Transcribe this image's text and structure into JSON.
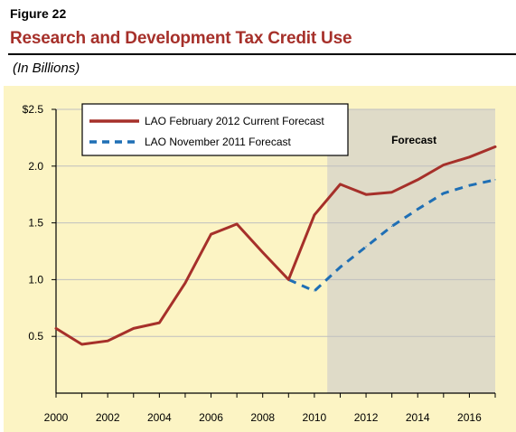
{
  "figure_label": "Figure 22",
  "colors": {
    "title": "#a6302a",
    "panel_bg": "#fcf4c4",
    "forecast_shade": "#dfdbc8",
    "series_current": "#a6302a",
    "series_previous": "#1f6fb5",
    "grid": "#bfbfbf"
  },
  "chart_data": {
    "type": "line",
    "title": "Research and Development Tax Credit Use",
    "subtitle": "(In Billions)",
    "xlabel": "",
    "ylabel": "",
    "xlim": [
      2000,
      2017
    ],
    "ylim": [
      0,
      2.5
    ],
    "x_ticks": [
      2000,
      2002,
      2004,
      2006,
      2008,
      2010,
      2012,
      2014,
      2016
    ],
    "x_tick_labels": [
      "2000",
      "2002",
      "2004",
      "2006",
      "2008",
      "2010",
      "2012",
      "2014",
      "2016"
    ],
    "y_ticks": [
      0.5,
      1.0,
      1.5,
      2.0,
      2.5
    ],
    "y_tick_labels": [
      "0.5",
      "1.0",
      "1.5",
      "2.0",
      "$2.5"
    ],
    "grid": "horizontal",
    "legend_position": "top-left",
    "forecast_region": {
      "start": 2010.5,
      "end": 2017,
      "label": "Forecast"
    },
    "series": [
      {
        "name": "LAO February 2012 Current Forecast",
        "style": "solid",
        "x": [
          2000,
          2001,
          2002,
          2003,
          2004,
          2005,
          2006,
          2007,
          2008,
          2009,
          2010,
          2011,
          2012,
          2013,
          2014,
          2015,
          2016,
          2017
        ],
        "values": [
          0.57,
          0.43,
          0.46,
          0.57,
          0.62,
          0.97,
          1.4,
          1.49,
          1.24,
          1.0,
          1.57,
          1.84,
          1.75,
          1.77,
          1.88,
          2.01,
          2.08,
          2.17
        ]
      },
      {
        "name": "LAO November 2011 Forecast",
        "style": "dashed",
        "x": [
          2009,
          2010,
          2011,
          2012,
          2013,
          2014,
          2015,
          2016,
          2017
        ],
        "values": [
          1.0,
          0.9,
          1.11,
          1.29,
          1.47,
          1.62,
          1.76,
          1.83,
          1.88
        ]
      }
    ]
  }
}
